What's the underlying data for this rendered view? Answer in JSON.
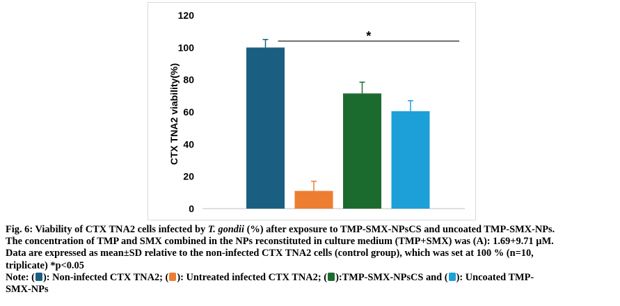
{
  "chart_data": {
    "type": "bar",
    "title": "",
    "xlabel": "",
    "ylabel": "CTX TNA2 viability(%)",
    "ylim": [
      0,
      120
    ],
    "yticks": [
      0,
      20,
      40,
      60,
      80,
      100,
      120
    ],
    "categories": [
      "Non-infected CTX TNA2",
      "Untreated infected CTX TNA2",
      "TMP-SMX-NPsCS",
      "Uncoated TMP-SMX-NPs"
    ],
    "values": [
      100,
      11,
      71.5,
      60.5
    ],
    "errors": [
      5,
      6,
      7,
      6.5
    ],
    "colors": [
      "#1a5f82",
      "#ed7d31",
      "#1c6b2e",
      "#1d9fd8"
    ],
    "significance": {
      "label": "*",
      "from_value": 100,
      "y": 104
    }
  },
  "caption": {
    "fig_label": "Fig. 6:",
    "title_pre": " Viability of CTX TNA2 cells infected by ",
    "organism": "T. gondii",
    "title_post": " (%) after exposure to TMP-SMX-NPsCS and uncoated TMP-SMX-NPs.",
    "line2": "The concentration of TMP and SMX combined in the NPs reconstituted in culture medium (TMP+SMX) was (A): 1.69+9.71 µM.",
    "line3": "Data are expressed as mean±SD relative to the non-infected CTX TNA2 cells (control group), which was set at 100 % (n=10,",
    "line4": "triplicate) *p<0.05"
  },
  "note": {
    "prefix": "Note: (",
    "item1": "): Non-infected CTX TNA2; (",
    "item2": "): Untreated infected CTX TNA2; (",
    "item3": "):TMP-SMX-NPsCS and (",
    "item4": "): Uncoated TMP-",
    "line2": "SMX-NPs"
  }
}
